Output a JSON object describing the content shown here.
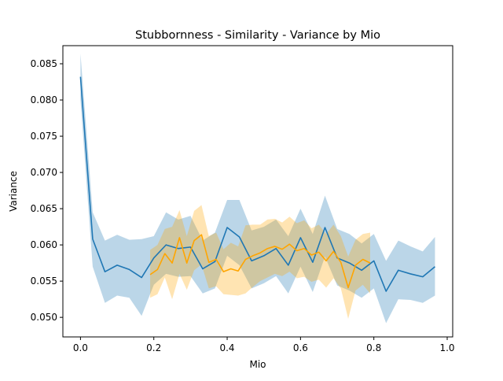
{
  "chart_data": {
    "type": "line",
    "title": "Stubbornness - Similarity - Variance by Mio",
    "xlabel": "Mio",
    "ylabel": "Variance",
    "xlim": [
      -0.048,
      1.015
    ],
    "ylim": [
      0.0473,
      0.0875
    ],
    "xticks": [
      0.0,
      0.2,
      0.4,
      0.6,
      0.8,
      1.0
    ],
    "xtick_labels": [
      "0.0",
      "0.2",
      "0.4",
      "0.6",
      "0.8",
      "1.0"
    ],
    "yticks": [
      0.05,
      0.055,
      0.06,
      0.065,
      0.07,
      0.075,
      0.08,
      0.085
    ],
    "ytick_labels": [
      "0.050",
      "0.055",
      "0.060",
      "0.065",
      "0.070",
      "0.075",
      "0.080",
      "0.085"
    ],
    "grid": false,
    "series": [
      {
        "color": "#1f77b4",
        "band_color": "#1f77b4",
        "x": [
          0.0,
          0.0333,
          0.0667,
          0.1,
          0.1333,
          0.1667,
          0.2,
          0.2333,
          0.2667,
          0.3,
          0.3333,
          0.3667,
          0.4,
          0.4333,
          0.4667,
          0.5,
          0.5333,
          0.5667,
          0.6,
          0.6333,
          0.6667,
          0.7,
          0.7333,
          0.7667,
          0.8,
          0.8333,
          0.8667,
          0.9,
          0.9333,
          0.9667
        ],
        "y": [
          0.0832,
          0.0608,
          0.0563,
          0.0572,
          0.0566,
          0.0555,
          0.0582,
          0.06,
          0.0595,
          0.0597,
          0.0567,
          0.0577,
          0.0624,
          0.0611,
          0.0578,
          0.0585,
          0.0595,
          0.0572,
          0.061,
          0.0576,
          0.0624,
          0.0582,
          0.0575,
          0.0565,
          0.0578,
          0.0536,
          0.0565,
          0.056,
          0.0556,
          0.057
        ],
        "lower": [
          0.08,
          0.057,
          0.052,
          0.053,
          0.0527,
          0.0502,
          0.0545,
          0.056,
          0.0556,
          0.0557,
          0.0533,
          0.054,
          0.0585,
          0.0572,
          0.054,
          0.0547,
          0.0557,
          0.0533,
          0.057,
          0.0535,
          0.0584,
          0.0544,
          0.0537,
          0.0527,
          0.054,
          0.0492,
          0.0525,
          0.0524,
          0.052,
          0.053
        ],
        "upper": [
          0.0864,
          0.0645,
          0.0606,
          0.0614,
          0.0607,
          0.0608,
          0.0612,
          0.0645,
          0.0635,
          0.064,
          0.0606,
          0.0617,
          0.0662,
          0.0662,
          0.062,
          0.0625,
          0.0635,
          0.0612,
          0.065,
          0.0615,
          0.0668,
          0.0622,
          0.0615,
          0.0602,
          0.0615,
          0.0578,
          0.0606,
          0.0598,
          0.0591,
          0.0611
        ]
      },
      {
        "color": "#ffa500",
        "band_color": "#ffa500",
        "x": [
          0.19,
          0.21,
          0.23,
          0.25,
          0.27,
          0.29,
          0.31,
          0.33,
          0.35,
          0.37,
          0.39,
          0.41,
          0.43,
          0.45,
          0.47,
          0.49,
          0.51,
          0.53,
          0.55,
          0.57,
          0.59,
          0.61,
          0.63,
          0.65,
          0.67,
          0.69,
          0.71,
          0.73,
          0.75,
          0.77,
          0.79
        ],
        "y": [
          0.0559,
          0.0566,
          0.0588,
          0.0575,
          0.061,
          0.0575,
          0.0606,
          0.0614,
          0.0576,
          0.058,
          0.0563,
          0.0567,
          0.0564,
          0.058,
          0.0585,
          0.0589,
          0.0595,
          0.0598,
          0.0594,
          0.0601,
          0.0592,
          0.0595,
          0.0586,
          0.059,
          0.0578,
          0.0591,
          0.0576,
          0.0541,
          0.0572,
          0.058,
          0.0575
        ],
        "lower": [
          0.0527,
          0.0532,
          0.0555,
          0.0525,
          0.056,
          0.0538,
          0.0565,
          0.0573,
          0.054,
          0.0543,
          0.0532,
          0.0531,
          0.053,
          0.0533,
          0.0542,
          0.055,
          0.0555,
          0.056,
          0.0557,
          0.0563,
          0.0554,
          0.0556,
          0.0549,
          0.0552,
          0.0541,
          0.0554,
          0.054,
          0.0498,
          0.0537,
          0.0545,
          0.0533
        ],
        "upper": [
          0.0593,
          0.06,
          0.0622,
          0.0625,
          0.0648,
          0.0612,
          0.0647,
          0.0655,
          0.0612,
          0.0617,
          0.0594,
          0.0603,
          0.0598,
          0.0627,
          0.0628,
          0.0628,
          0.0635,
          0.0636,
          0.0631,
          0.0639,
          0.063,
          0.0634,
          0.0623,
          0.0628,
          0.0615,
          0.0628,
          0.0612,
          0.0584,
          0.0607,
          0.0615,
          0.0617
        ]
      }
    ]
  }
}
